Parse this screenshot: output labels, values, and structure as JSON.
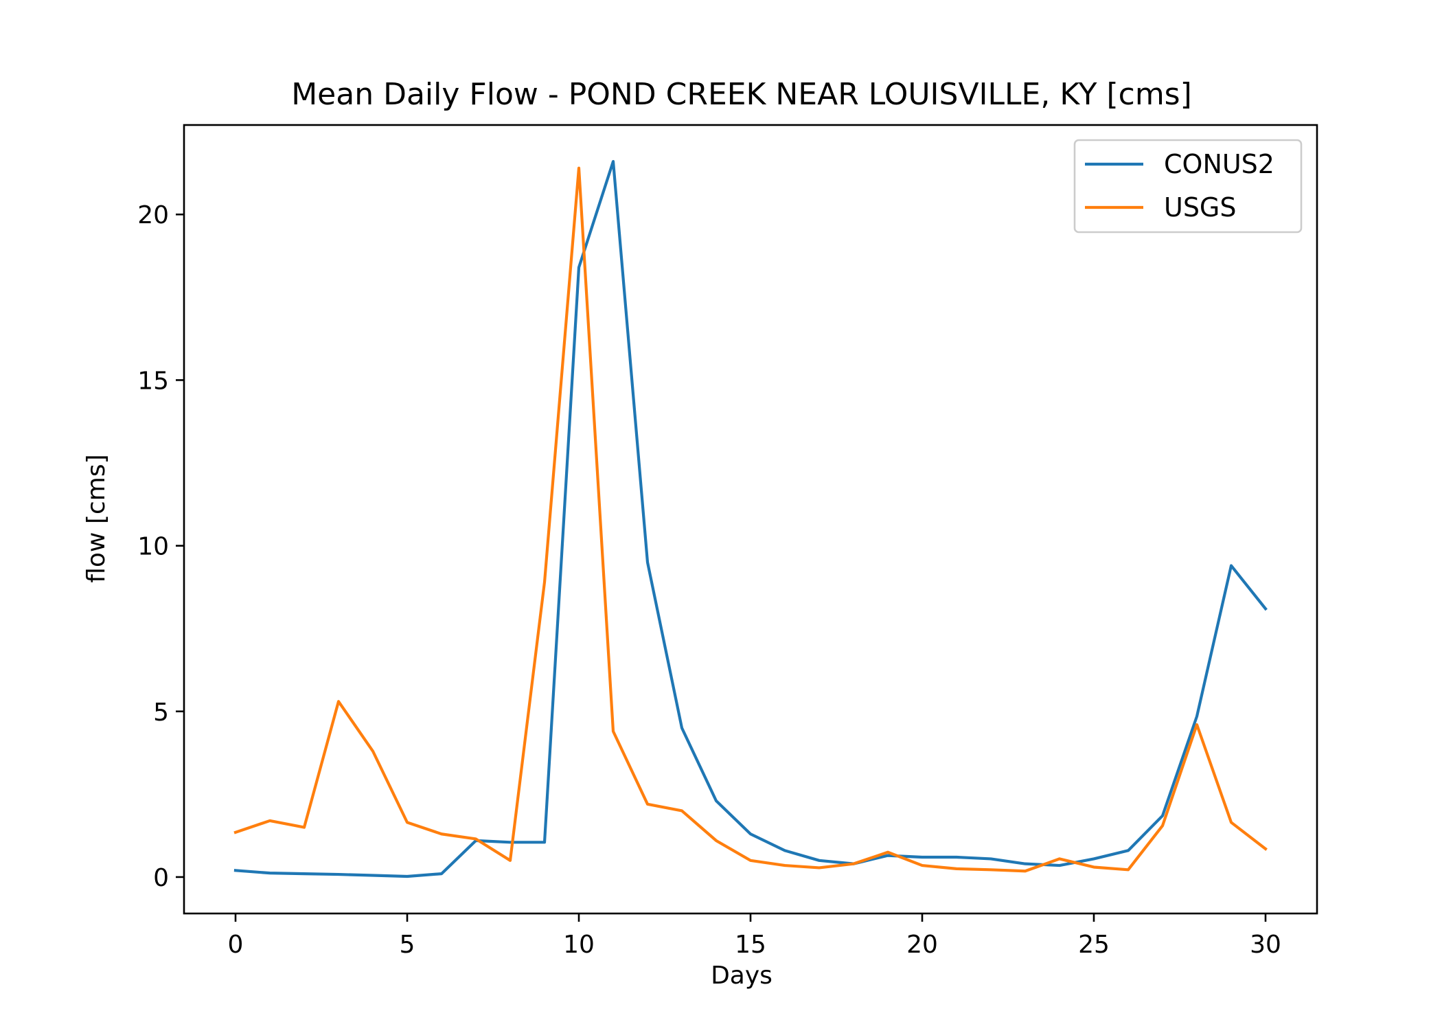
{
  "chart_data": {
    "type": "line",
    "title": "Mean Daily Flow - POND CREEK NEAR LOUISVILLE, KY [cms]",
    "xlabel": "Days",
    "ylabel": "flow [cms]",
    "xlim": [
      -1.5,
      31.5
    ],
    "ylim": [
      -1.1,
      22.7
    ],
    "xticks": [
      0,
      5,
      10,
      15,
      20,
      25,
      30
    ],
    "yticks": [
      0,
      5,
      10,
      15,
      20
    ],
    "grid": false,
    "legend_position": "upper right",
    "x": [
      0,
      1,
      2,
      3,
      4,
      5,
      6,
      7,
      8,
      9,
      10,
      11,
      12,
      13,
      14,
      15,
      16,
      17,
      18,
      19,
      20,
      21,
      22,
      23,
      24,
      25,
      26,
      27,
      28,
      29,
      30
    ],
    "series": [
      {
        "name": "CONUS2",
        "color": "#1f77b4",
        "values": [
          0.2,
          0.12,
          0.1,
          0.08,
          0.05,
          0.02,
          0.1,
          1.1,
          1.05,
          1.05,
          18.4,
          21.6,
          9.5,
          4.5,
          2.3,
          1.3,
          0.8,
          0.5,
          0.4,
          0.65,
          0.6,
          0.6,
          0.55,
          0.4,
          0.35,
          0.55,
          0.8,
          1.85,
          4.85,
          9.4,
          8.1
        ]
      },
      {
        "name": "USGS",
        "color": "#ff7f0e",
        "values": [
          1.35,
          1.7,
          1.5,
          5.3,
          3.8,
          1.65,
          1.3,
          1.15,
          0.5,
          8.9,
          21.4,
          4.4,
          2.2,
          2.0,
          1.1,
          0.5,
          0.35,
          0.28,
          0.4,
          0.75,
          0.35,
          0.25,
          0.22,
          0.18,
          0.55,
          0.3,
          0.22,
          1.55,
          4.6,
          1.65,
          0.85
        ]
      }
    ]
  }
}
